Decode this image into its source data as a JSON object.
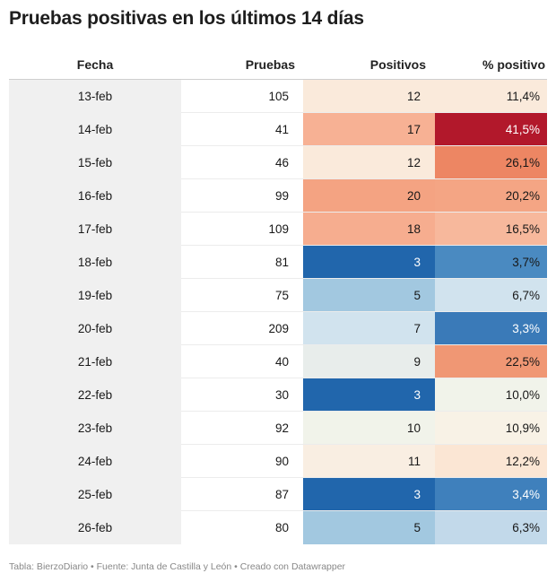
{
  "title": "Pruebas positivas en los últimos 14 días",
  "footer": "Tabla: BierzoDiario • Fuente: Junta de Castilla y León • Creado con Datawrapper",
  "chart_data": {
    "type": "table",
    "columns": [
      "Fecha",
      "Pruebas",
      "Positivos",
      "% positivo"
    ],
    "rows": [
      {
        "fecha": "13-feb",
        "pruebas": "105",
        "positivos": "12",
        "pct": "11,4%",
        "pos_color": "#faeadb",
        "pct_color": "#faeadb"
      },
      {
        "fecha": "14-feb",
        "pruebas": "41",
        "positivos": "17",
        "pct": "41,5%",
        "pos_color": "#f7b194",
        "pct_color": "#b2182b"
      },
      {
        "fecha": "15-feb",
        "pruebas": "46",
        "positivos": "12",
        "pct": "26,1%",
        "pos_color": "#faeadb",
        "pct_color": "#ed8663"
      },
      {
        "fecha": "16-feb",
        "pruebas": "99",
        "positivos": "20",
        "pct": "20,2%",
        "pos_color": "#f4a382",
        "pct_color": "#f4a584"
      },
      {
        "fecha": "17-feb",
        "pruebas": "109",
        "positivos": "18",
        "pct": "16,5%",
        "pos_color": "#f6ad8f",
        "pct_color": "#f7b89c"
      },
      {
        "fecha": "18-feb",
        "pruebas": "81",
        "positivos": "3",
        "pct": "3,7%",
        "pos_color": "#2166ac",
        "pct_color": "#4a8ac1"
      },
      {
        "fecha": "19-feb",
        "pruebas": "75",
        "positivos": "5",
        "pct": "6,7%",
        "pos_color": "#a2c8e0",
        "pct_color": "#d1e3ee"
      },
      {
        "fecha": "20-feb",
        "pruebas": "209",
        "positivos": "7",
        "pct": "3,3%",
        "pos_color": "#d1e3ee",
        "pct_color": "#3a7ab8"
      },
      {
        "fecha": "21-feb",
        "pruebas": "40",
        "positivos": "9",
        "pct": "22,5%",
        "pos_color": "#e8edeb",
        "pct_color": "#f09774"
      },
      {
        "fecha": "22-feb",
        "pruebas": "30",
        "positivos": "3",
        "pct": "10,0%",
        "pos_color": "#2166ac",
        "pct_color": "#f1f3ea"
      },
      {
        "fecha": "23-feb",
        "pruebas": "92",
        "positivos": "10",
        "pct": "10,9%",
        "pos_color": "#f1f3ea",
        "pct_color": "#f8f2e6"
      },
      {
        "fecha": "24-feb",
        "pruebas": "90",
        "positivos": "11",
        "pct": "12,2%",
        "pos_color": "#f9eee2",
        "pct_color": "#fbe6d4"
      },
      {
        "fecha": "25-feb",
        "pruebas": "87",
        "positivos": "3",
        "pct": "3,4%",
        "pos_color": "#2166ac",
        "pct_color": "#3f80bc"
      },
      {
        "fecha": "26-feb",
        "pruebas": "80",
        "positivos": "5",
        "pct": "6,3%",
        "pos_color": "#a2c8e0",
        "pct_color": "#c2d9ea"
      }
    ]
  }
}
